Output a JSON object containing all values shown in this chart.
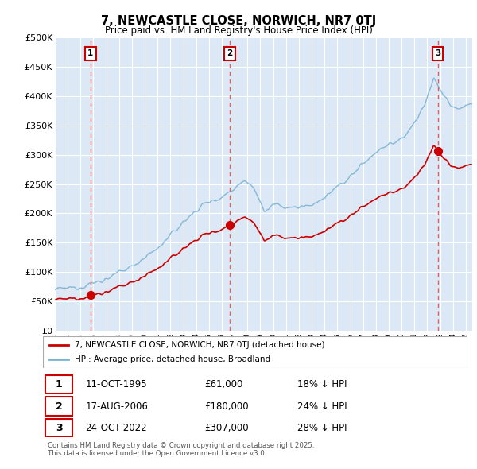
{
  "title": "7, NEWCASTLE CLOSE, NORWICH, NR7 0TJ",
  "subtitle": "Price paid vs. HM Land Registry's House Price Index (HPI)",
  "sales": [
    {
      "date_num": 1995.78,
      "price": 61000,
      "label": "1",
      "date_str": "11-OCT-1995",
      "pct": "18%"
    },
    {
      "date_num": 2006.63,
      "price": 180000,
      "label": "2",
      "date_str": "17-AUG-2006",
      "pct": "24%"
    },
    {
      "date_num": 2022.81,
      "price": 307000,
      "label": "3",
      "date_str": "24-OCT-2022",
      "pct": "28%"
    }
  ],
  "sale_line_color": "#cc0000",
  "hpi_line_color": "#7ab3d4",
  "marker_color": "#cc0000",
  "dashed_line_color": "#e06060",
  "ylim": [
    0,
    500000
  ],
  "xlim": [
    1993.0,
    2025.5
  ],
  "yticks": [
    0,
    50000,
    100000,
    150000,
    200000,
    250000,
    300000,
    350000,
    400000,
    450000,
    500000
  ],
  "plot_bg_color": "#dce8f5",
  "grid_color": "#ffffff",
  "legend_sale_label": "7, NEWCASTLE CLOSE, NORWICH, NR7 0TJ (detached house)",
  "legend_hpi_label": "HPI: Average price, detached house, Broadland",
  "footnote": "Contains HM Land Registry data © Crown copyright and database right 2025.\nThis data is licensed under the Open Government Licence v3.0."
}
